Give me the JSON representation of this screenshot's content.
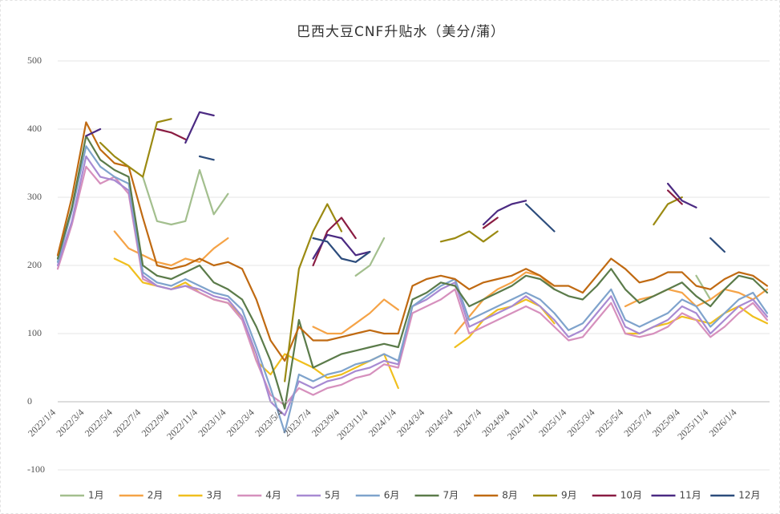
{
  "chart_data": {
    "type": "line",
    "title": "巴西大豆CNF升贴水（美分/蒲）",
    "categories": [
      "2022/1/4",
      null,
      "2022/3/4",
      null,
      "2022/5/4",
      null,
      "2022/7/4",
      null,
      "2022/9/4",
      null,
      "2022/11/4",
      null,
      "2023/1/4",
      null,
      "2023/3/4",
      null,
      "2023/5/4",
      null,
      "2023/7/4",
      null,
      "2023/9/4",
      null,
      "2023/11/4",
      null,
      "2024/1/4",
      null,
      "2024/3/4",
      null,
      "2024/5/4",
      null,
      "2024/7/4",
      null,
      "2024/9/4",
      null,
      "2024/11/4",
      null,
      "2025/1/4",
      null,
      "2025/3/4",
      null,
      "2025/5/4",
      null,
      "2025/7/4",
      null,
      "2025/9/4",
      null,
      "2025/11/4",
      null,
      "2026/1/4",
      null,
      null
    ],
    "ylim": [
      -100,
      500
    ],
    "yticks": [
      -100,
      0,
      100,
      200,
      300,
      400,
      500
    ],
    "grid": true,
    "series": [
      {
        "name": "1月",
        "color": "#a3bf8e",
        "values": [
          null,
          null,
          null,
          null,
          null,
          null,
          330,
          265,
          260,
          265,
          340,
          275,
          305,
          null,
          null,
          null,
          null,
          null,
          null,
          null,
          null,
          185,
          200,
          240,
          null,
          null,
          null,
          null,
          null,
          null,
          null,
          null,
          null,
          null,
          null,
          null,
          null,
          null,
          null,
          null,
          null,
          null,
          null,
          null,
          null,
          185,
          150,
          null,
          null,
          null,
          null
        ]
      },
      {
        "name": "2月",
        "color": "#f5a347",
        "values": [
          null,
          null,
          null,
          null,
          250,
          225,
          215,
          205,
          200,
          210,
          205,
          225,
          240,
          null,
          null,
          null,
          null,
          null,
          110,
          100,
          100,
          115,
          130,
          150,
          135,
          null,
          null,
          null,
          100,
          125,
          150,
          165,
          175,
          190,
          185,
          165,
          null,
          null,
          null,
          null,
          140,
          150,
          155,
          165,
          160,
          140,
          150,
          165,
          160,
          150,
          165
        ]
      },
      {
        "name": "3月",
        "color": "#f0bf1e",
        "values": [
          null,
          null,
          null,
          null,
          210,
          200,
          175,
          170,
          165,
          175,
          160,
          150,
          145,
          125,
          60,
          40,
          70,
          60,
          50,
          35,
          40,
          50,
          60,
          70,
          20,
          null,
          null,
          null,
          80,
          95,
          120,
          135,
          140,
          150,
          140,
          115,
          null,
          null,
          null,
          null,
          100,
          100,
          110,
          115,
          125,
          120,
          115,
          130,
          140,
          125,
          115
        ]
      },
      {
        "name": "4月",
        "color": "#d690bd",
        "values": [
          195,
          260,
          345,
          320,
          330,
          305,
          180,
          170,
          165,
          170,
          160,
          150,
          145,
          120,
          60,
          10,
          -5,
          20,
          10,
          20,
          25,
          35,
          40,
          55,
          50,
          130,
          140,
          150,
          165,
          100,
          110,
          120,
          130,
          140,
          130,
          110,
          90,
          95,
          120,
          145,
          100,
          95,
          100,
          110,
          130,
          120,
          95,
          110,
          130,
          145,
          120
        ]
      },
      {
        "name": "5月",
        "color": "#a88ad2",
        "values": [
          200,
          265,
          360,
          330,
          325,
          310,
          185,
          170,
          165,
          170,
          165,
          155,
          150,
          125,
          70,
          0,
          -20,
          30,
          20,
          30,
          35,
          45,
          50,
          60,
          55,
          140,
          150,
          165,
          175,
          110,
          120,
          130,
          140,
          155,
          140,
          120,
          95,
          105,
          130,
          155,
          110,
          100,
          110,
          120,
          140,
          130,
          100,
          120,
          140,
          150,
          125
        ]
      },
      {
        "name": "6月",
        "color": "#7fa3cc",
        "values": [
          205,
          280,
          375,
          345,
          330,
          320,
          190,
          175,
          170,
          180,
          170,
          160,
          155,
          135,
          80,
          20,
          -45,
          40,
          30,
          40,
          45,
          55,
          60,
          70,
          60,
          140,
          155,
          170,
          180,
          120,
          130,
          140,
          150,
          160,
          150,
          130,
          105,
          115,
          140,
          165,
          120,
          110,
          120,
          130,
          150,
          140,
          110,
          130,
          150,
          160,
          130
        ]
      },
      {
        "name": "7月",
        "color": "#5b7b4a",
        "values": [
          210,
          285,
          390,
          355,
          340,
          330,
          200,
          185,
          180,
          190,
          200,
          175,
          165,
          150,
          110,
          60,
          -10,
          120,
          50,
          60,
          70,
          75,
          80,
          85,
          80,
          150,
          160,
          175,
          170,
          140,
          150,
          160,
          170,
          185,
          180,
          165,
          155,
          150,
          170,
          195,
          165,
          145,
          155,
          165,
          175,
          155,
          140,
          165,
          185,
          180,
          160
        ]
      },
      {
        "name": "8月",
        "color": "#c06a12",
        "values": [
          215,
          300,
          410,
          370,
          350,
          345,
          270,
          200,
          195,
          200,
          210,
          200,
          205,
          195,
          150,
          90,
          60,
          110,
          90,
          90,
          95,
          100,
          105,
          100,
          100,
          170,
          180,
          185,
          180,
          165,
          175,
          180,
          185,
          195,
          185,
          170,
          170,
          160,
          185,
          210,
          195,
          175,
          180,
          190,
          190,
          170,
          165,
          180,
          190,
          185,
          170
        ]
      },
      {
        "name": "9月",
        "color": "#9b8a12",
        "values": [
          null,
          null,
          null,
          380,
          360,
          345,
          330,
          410,
          415,
          null,
          null,
          null,
          null,
          null,
          null,
          null,
          30,
          195,
          250,
          290,
          250,
          null,
          null,
          null,
          null,
          null,
          null,
          235,
          240,
          250,
          235,
          250,
          null,
          null,
          null,
          null,
          null,
          null,
          null,
          null,
          null,
          null,
          260,
          290,
          300,
          null,
          null,
          null,
          null,
          null,
          null
        ]
      },
      {
        "name": "10月",
        "color": "#8a1c42",
        "values": [
          null,
          null,
          null,
          null,
          null,
          null,
          null,
          400,
          395,
          385,
          null,
          null,
          null,
          null,
          null,
          null,
          null,
          null,
          200,
          250,
          270,
          240,
          null,
          null,
          null,
          null,
          null,
          null,
          null,
          null,
          255,
          270,
          null,
          null,
          null,
          null,
          null,
          null,
          null,
          null,
          null,
          null,
          null,
          310,
          290,
          null,
          null,
          null,
          null,
          null,
          null
        ]
      },
      {
        "name": "11月",
        "color": "#4b2a82",
        "values": [
          null,
          null,
          390,
          400,
          null,
          null,
          null,
          null,
          null,
          380,
          425,
          420,
          null,
          null,
          null,
          null,
          null,
          null,
          210,
          245,
          240,
          215,
          220,
          null,
          null,
          null,
          null,
          null,
          null,
          null,
          260,
          280,
          290,
          295,
          null,
          null,
          null,
          null,
          null,
          null,
          null,
          null,
          null,
          320,
          295,
          285,
          null,
          null,
          null,
          null,
          null
        ]
      },
      {
        "name": "12月",
        "color": "#2c4c7c",
        "values": [
          null,
          null,
          null,
          null,
          null,
          null,
          null,
          null,
          null,
          null,
          360,
          355,
          null,
          null,
          null,
          null,
          null,
          null,
          240,
          235,
          210,
          205,
          220,
          null,
          null,
          null,
          null,
          null,
          null,
          null,
          null,
          null,
          null,
          290,
          270,
          250,
          null,
          null,
          null,
          null,
          null,
          null,
          null,
          null,
          null,
          null,
          240,
          220,
          null,
          null,
          null
        ]
      }
    ]
  }
}
